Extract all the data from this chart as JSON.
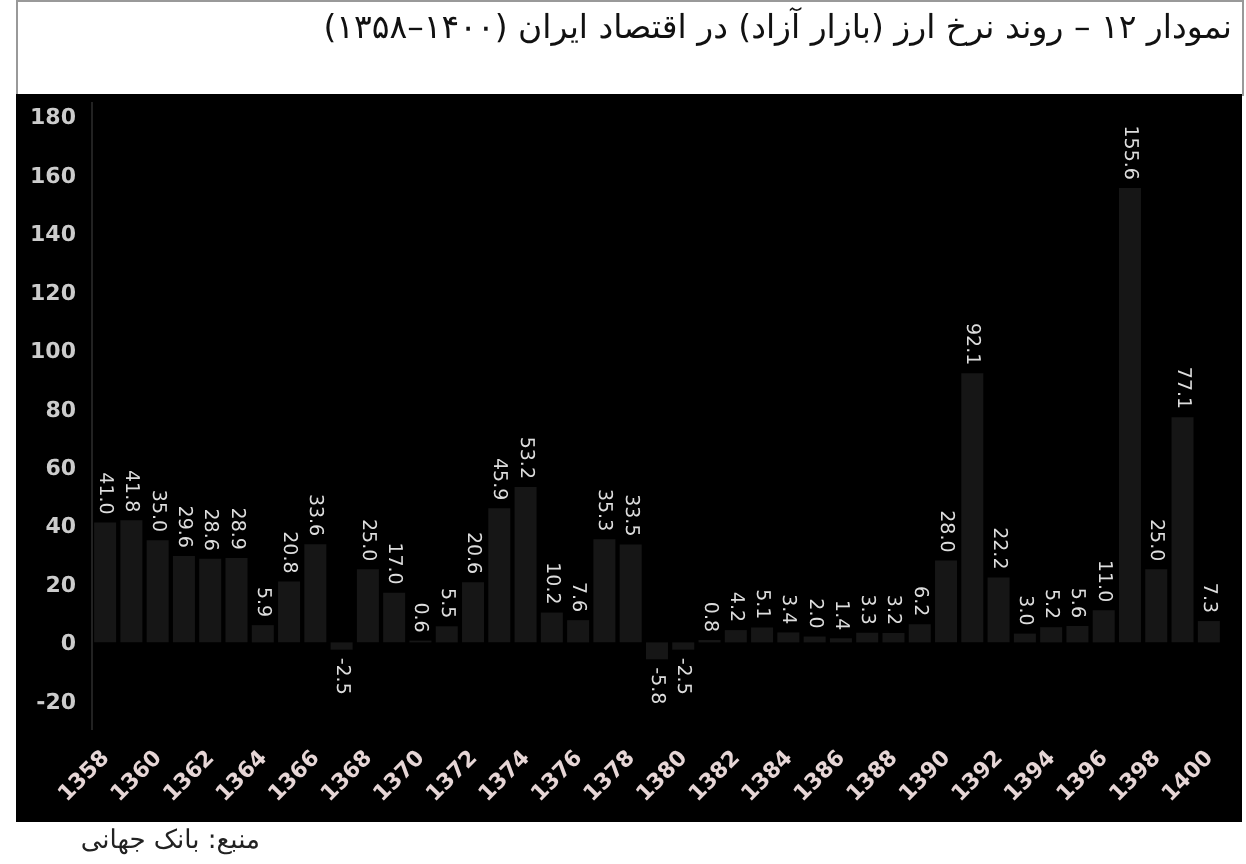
{
  "chart_data": {
    "type": "bar",
    "title": "نمودار ۱۲ – روند نرخ ارز (بازار آزاد) در اقتصاد ایران (۱۴۰۰–۱۳۵۸)",
    "annotations": [
      "منبع: بانک جهانی"
    ],
    "categories": [
      "1358",
      null,
      "1360",
      null,
      "1362",
      null,
      "1364",
      null,
      "1366",
      null,
      "1368",
      null,
      "1370",
      null,
      "1372",
      null,
      "1374",
      null,
      "1376",
      null,
      "1378",
      null,
      "1380",
      null,
      "1382",
      null,
      "1384",
      null,
      "1386",
      null,
      "1388",
      null,
      "1390",
      null,
      "1392",
      null,
      "1394",
      null,
      "1396",
      null,
      "1398",
      null,
      "1400"
    ],
    "values": [
      41.0,
      41.8,
      35.0,
      29.6,
      28.6,
      28.9,
      5.9,
      20.8,
      33.6,
      -2.5,
      25.0,
      17.0,
      0.6,
      5.5,
      20.6,
      45.9,
      53.2,
      10.2,
      7.6,
      35.3,
      33.5,
      -5.8,
      -2.5,
      0.8,
      4.2,
      5.1,
      3.4,
      2.0,
      1.4,
      3.3,
      3.2,
      6.2,
      28.0,
      92.1,
      22.2,
      3.0,
      5.2,
      5.6,
      11.0,
      155.6,
      25.0,
      77.1,
      7.3
    ],
    "value_labels": [
      "41.0",
      "41.8",
      "35.0",
      "29.6",
      "28.6",
      "28.9",
      "5.9",
      "20.8",
      "33.6",
      "-2.5",
      "25.0",
      "17.0",
      "0.6",
      "5.5",
      "20.6",
      "45.9",
      "53.2",
      "10.2",
      "7.6",
      "35.3",
      "33.5",
      "-5.8",
      "-2.5",
      "0.8",
      "4.2",
      "5.1",
      "3.4",
      "2.0",
      "1.4",
      "3.3",
      "3.2",
      "6.2",
      "28.0",
      "92.1",
      "22.2",
      "3.0",
      "5.2",
      "5.6",
      "11.0",
      "155.6",
      "25.0",
      "77.1",
      "7.3"
    ],
    "color": "#161616",
    "ylim": [
      -30,
      185
    ],
    "yticks": [
      -20,
      0,
      20,
      40,
      60,
      80,
      100,
      120,
      140,
      160,
      180
    ],
    "grid": false,
    "legend": false
  }
}
